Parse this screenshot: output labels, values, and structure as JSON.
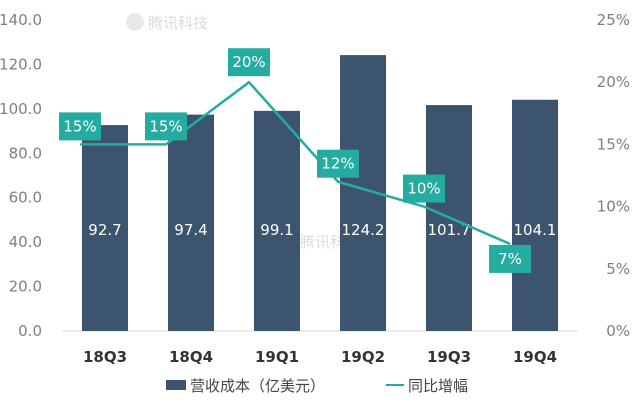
{
  "chart_data": {
    "type": "bar",
    "categories": [
      "18Q3",
      "18Q4",
      "19Q1",
      "19Q2",
      "19Q3",
      "19Q4"
    ],
    "series": [
      {
        "name": "营收成本（亿美元）",
        "type": "bar",
        "axis": "left",
        "values": [
          92.7,
          97.4,
          99.1,
          124.2,
          101.7,
          104.1
        ],
        "labels": [
          "92.7",
          "97.4",
          "99.1",
          "124.2",
          "101.7",
          "104.1"
        ],
        "color": "#3c546e"
      },
      {
        "name": "同比增幅",
        "type": "line",
        "axis": "right",
        "values": [
          15,
          15,
          20,
          12,
          10,
          7
        ],
        "labels": [
          "15%",
          "15%",
          "20%",
          "12%",
          "10%",
          "7%"
        ],
        "color": "#25aca1"
      }
    ],
    "y_left": {
      "ylim": [
        0,
        140
      ],
      "ticks": [
        "0.0",
        "20.0",
        "40.0",
        "60.0",
        "80.0",
        "100.0",
        "120.0",
        "140.0"
      ]
    },
    "y_right": {
      "ylim": [
        0,
        25
      ],
      "ticks": [
        "0%",
        "5%",
        "10%",
        "15%",
        "20%",
        "25%"
      ]
    },
    "title": "",
    "xlabel": "",
    "ylabel": "",
    "grid": false,
    "legend": "bottom",
    "watermark": "腾讯科技"
  }
}
